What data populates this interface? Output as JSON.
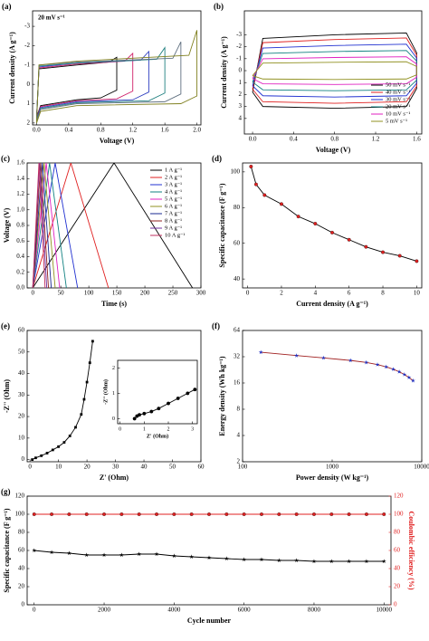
{
  "chart_data": [
    {
      "type": "line",
      "panel": "(a)",
      "annotation": "20 mV s⁻¹",
      "x_label": "Voltage (V)",
      "y_label": "Current density (A g⁻¹)",
      "xlim": [
        -0.05,
        2.05
      ],
      "ylim": [
        2.1,
        -3.8
      ],
      "xticks": [
        {
          "value": 0,
          "label": "0.0"
        },
        {
          "value": 0.4,
          "label": "0.4"
        },
        {
          "value": 0.8,
          "label": "0.8"
        },
        {
          "value": 1.2,
          "label": "1.2"
        },
        {
          "value": 1.6,
          "label": "1.6"
        },
        {
          "value": 2.0,
          "label": "2.0"
        }
      ],
      "yticks": [
        -3,
        -2,
        -1,
        0,
        1,
        2
      ],
      "series": [
        {
          "color": "#000000",
          "x": [
            0,
            0.03,
            0.5,
            0.9,
            1.0,
            1.0,
            0.8,
            0.5,
            0.05,
            0
          ],
          "values": [
            1.7,
            -0.8,
            -1.0,
            -1.15,
            -1.4,
            0.3,
            0.7,
            0.8,
            1.1,
            1.7
          ]
        },
        {
          "color": "#d0206a",
          "x": [
            0,
            0.03,
            0.5,
            1.1,
            1.2,
            1.2,
            1.0,
            0.5,
            0.05,
            0
          ],
          "values": [
            1.75,
            -0.85,
            -1.05,
            -1.2,
            -1.6,
            0.35,
            0.75,
            0.85,
            1.15,
            1.75
          ]
        },
        {
          "color": "#3040c0",
          "x": [
            0,
            0.03,
            0.5,
            1.3,
            1.4,
            1.4,
            1.2,
            0.5,
            0.05,
            0
          ],
          "values": [
            1.8,
            -0.9,
            -1.1,
            -1.25,
            -1.7,
            0.4,
            0.8,
            0.9,
            1.2,
            1.8
          ]
        },
        {
          "color": "#208080",
          "x": [
            0,
            0.03,
            0.5,
            1.5,
            1.6,
            1.6,
            1.4,
            0.5,
            0.05,
            0
          ],
          "values": [
            1.85,
            -0.95,
            -1.1,
            -1.3,
            -1.9,
            0.45,
            0.85,
            0.95,
            1.25,
            1.85
          ]
        },
        {
          "color": "#607080",
          "x": [
            0,
            0.03,
            0.5,
            1.7,
            1.8,
            1.8,
            1.6,
            0.5,
            0.05,
            0
          ],
          "values": [
            1.9,
            -1.0,
            -1.15,
            -1.35,
            -2.2,
            0.5,
            0.9,
            1.0,
            1.3,
            1.9
          ]
        },
        {
          "color": "#808020",
          "x": [
            0,
            0.03,
            0.5,
            1.9,
            2.0,
            2.0,
            1.8,
            0.5,
            0.05,
            0
          ],
          "values": [
            2.0,
            -1.0,
            -1.2,
            -1.5,
            -2.8,
            0.6,
            1.0,
            1.1,
            1.4,
            2.0
          ]
        }
      ]
    },
    {
      "type": "line",
      "panel": "(b)",
      "legend": "lower right",
      "x_label": "Voltage (V)",
      "y_label": "Current density (A g⁻¹)",
      "xlim": [
        -0.08,
        1.65
      ],
      "ylim": [
        5.3,
        -5.0
      ],
      "xticks": [
        {
          "value": 0,
          "label": "0.0"
        },
        {
          "value": 0.4,
          "label": "0.4"
        },
        {
          "value": 0.8,
          "label": "0.8"
        },
        {
          "value": 1.2,
          "label": "1.2"
        },
        {
          "value": 1.6,
          "label": "1.6"
        }
      ],
      "yticks": [
        -3,
        -2,
        -1,
        0,
        1,
        2,
        3,
        4
      ],
      "x": [
        0,
        0.1,
        0.8,
        1.5,
        1.6,
        1.6,
        1.5,
        0.8,
        0.1,
        0
      ],
      "series": [
        {
          "name": "50 mV s⁻¹",
          "color": "#000000",
          "values": [
            1.8,
            -2.7,
            -3.0,
            -3.15,
            -1.5,
            1.5,
            3.0,
            3.15,
            3.0,
            1.8
          ]
        },
        {
          "name": "40 mV s⁻¹",
          "color": "#e02020",
          "values": [
            1.56,
            -2.34,
            -2.6,
            -2.73,
            -1.3,
            1.3,
            2.6,
            2.73,
            2.6,
            1.56
          ]
        },
        {
          "name": "30 mV s⁻¹",
          "color": "#2030d0",
          "values": [
            1.26,
            -1.89,
            -2.1,
            -2.21,
            -1.05,
            1.05,
            2.1,
            2.21,
            2.1,
            1.26
          ]
        },
        {
          "name": "20 mV s⁻¹",
          "color": "#108080",
          "values": [
            0.96,
            -1.44,
            -1.6,
            -1.68,
            -0.8,
            0.8,
            1.6,
            1.68,
            1.6,
            0.96
          ]
        },
        {
          "name": "10 mV s⁻¹",
          "color": "#e020c0",
          "values": [
            0.66,
            -0.99,
            -1.1,
            -1.16,
            -0.55,
            0.55,
            1.1,
            1.16,
            1.1,
            0.66
          ]
        },
        {
          "name": "5 mV s⁻¹",
          "color": "#909020",
          "values": [
            0.42,
            -0.63,
            -0.7,
            -0.74,
            -0.35,
            0.35,
            0.7,
            0.74,
            0.7,
            0.42
          ]
        }
      ]
    },
    {
      "type": "line",
      "panel": "(c)",
      "legend": "upper right",
      "x_label": "Time (s)",
      "y_label": "Voltage (V)",
      "xlim": [
        -10,
        300
      ],
      "ylim": [
        0,
        1.6
      ],
      "xticks": [
        0,
        50,
        100,
        150,
        200,
        250,
        300
      ],
      "yticks": [
        {
          "value": 0,
          "label": "0.0"
        },
        {
          "value": 0.2,
          "label": "0.2"
        },
        {
          "value": 0.4,
          "label": "0.4"
        },
        {
          "value": 0.6,
          "label": "0.6"
        },
        {
          "value": 0.8,
          "label": "0.8"
        },
        {
          "value": 1.0,
          "label": "1.0"
        },
        {
          "value": 1.2,
          "label": "1.2"
        },
        {
          "value": 1.4,
          "label": "1.4"
        },
        {
          "value": 1.6,
          "label": "1.6"
        }
      ],
      "series": [
        {
          "name": "1 A g⁻¹",
          "color": "#000000",
          "x": [
            0,
            145,
            285
          ],
          "values": [
            0,
            1.6,
            0
          ]
        },
        {
          "name": "2 A g⁻¹",
          "color": "#e02020",
          "x": [
            0,
            68,
            135
          ],
          "values": [
            0,
            1.6,
            0
          ]
        },
        {
          "name": "3 A g⁻¹",
          "color": "#2030d0",
          "x": [
            0,
            40,
            80
          ],
          "values": [
            0,
            1.6,
            0
          ]
        },
        {
          "name": "4 A g⁻¹",
          "color": "#108080",
          "x": [
            0,
            30,
            60
          ],
          "values": [
            0,
            1.6,
            0
          ]
        },
        {
          "name": "5 A g⁻¹",
          "color": "#e020c0",
          "x": [
            0,
            24,
            48
          ],
          "values": [
            0,
            1.6,
            0
          ]
        },
        {
          "name": "6 A g⁻¹",
          "color": "#909020",
          "x": [
            0,
            20,
            40
          ],
          "values": [
            0,
            1.6,
            0
          ]
        },
        {
          "name": "7 A g⁻¹",
          "color": "#1a2a90",
          "x": [
            0,
            17,
            33
          ],
          "values": [
            0,
            1.6,
            0
          ]
        },
        {
          "name": "8 A g⁻¹",
          "color": "#902020",
          "x": [
            0,
            14,
            28
          ],
          "values": [
            0,
            1.6,
            0
          ]
        },
        {
          "name": "9 A g⁻¹",
          "color": "#7030a0",
          "x": [
            0,
            12,
            25
          ],
          "values": [
            0,
            1.6,
            0
          ]
        },
        {
          "name": "10 A g⁻¹",
          "color": "#c03060",
          "x": [
            0,
            11,
            22
          ],
          "values": [
            0,
            1.6,
            0
          ]
        }
      ]
    },
    {
      "type": "line",
      "panel": "(d)",
      "marker": "circle",
      "x_label": "Current density (A g⁻¹)",
      "y_label": "Specific capacitance (F g⁻¹)",
      "xlim": [
        -0.3,
        10.3
      ],
      "ylim": [
        35,
        105
      ],
      "xticks": [
        0,
        2,
        4,
        6,
        8,
        10
      ],
      "yticks": [
        40,
        60,
        80,
        100
      ],
      "series": [
        {
          "color": "#000000",
          "marker_color": "#e02020",
          "x": [
            0.2,
            0.5,
            1,
            2,
            3,
            4,
            5,
            6,
            7,
            8,
            9,
            10
          ],
          "values": [
            103,
            93,
            87,
            82,
            75,
            71,
            66,
            62,
            58,
            55,
            53,
            50
          ]
        }
      ]
    },
    {
      "type": "line",
      "panel": "(e)",
      "marker": "square",
      "x_label": "Z' (Ohm)",
      "y_label": "-Z'' (Ohm)",
      "xlim": [
        -1,
        60
      ],
      "ylim": [
        -1,
        60
      ],
      "xticks": [
        0,
        10,
        20,
        30,
        40,
        50,
        60
      ],
      "yticks": [
        0,
        10,
        20,
        30,
        40,
        50,
        60
      ],
      "series": [
        {
          "color": "#000000",
          "marker_color": "#000000",
          "x": [
            0.8,
            2,
            4,
            6,
            8,
            10,
            12,
            14,
            16,
            18,
            19,
            20,
            21,
            22
          ],
          "values": [
            0,
            0.8,
            1.8,
            3,
            4.5,
            6,
            8,
            11,
            15,
            21,
            28,
            36,
            45,
            55
          ]
        }
      ]
    },
    {
      "type": "line",
      "inset": true,
      "marker": "circle",
      "x_label": "Z' (Ohm)",
      "y_label": "-Z'' (Ohm)",
      "xlim": [
        -0.1,
        3.2
      ],
      "ylim": [
        -0.2,
        2.3
      ],
      "xticks": [
        0,
        1,
        2,
        3
      ],
      "yticks": [
        0,
        1,
        2
      ],
      "series": [
        {
          "color": "#000000",
          "marker_color": "#000000",
          "x": [
            0.6,
            0.7,
            0.8,
            1.0,
            1.3,
            1.6,
            2.0,
            2.4,
            2.8,
            3.1
          ],
          "values": [
            0,
            0.1,
            0.15,
            0.2,
            0.28,
            0.4,
            0.6,
            0.8,
            1.0,
            1.15
          ]
        }
      ]
    },
    {
      "type": "line",
      "panel": "(f)",
      "marker": "star",
      "xscale": "log",
      "yscale": "log",
      "x_label": "Power density (W kg⁻¹)",
      "y_label": "Energy density (Wh kg⁻¹)",
      "xlim": [
        100,
        10000
      ],
      "ylim": [
        2,
        64
      ],
      "xticks": [
        100,
        1000,
        10000
      ],
      "yticks": [
        2,
        4,
        8,
        16,
        32,
        64
      ],
      "series": [
        {
          "color": "#a02020",
          "marker_color": "#2030c0",
          "x": [
            160,
            400,
            800,
            1600,
            2400,
            3200,
            4000,
            4800,
            5600,
            6400,
            7200,
            8000
          ],
          "values": [
            36,
            33,
            31,
            29,
            27.5,
            26,
            24.5,
            23,
            21.5,
            20,
            18.5,
            17
          ]
        }
      ]
    },
    {
      "type": "line",
      "panel": "(g)",
      "x_label": "Cycle number",
      "y_label": "Specific capacitance (F g⁻¹)",
      "y2_label": "Coulombic efficiency (%)",
      "xlim": [
        -200,
        10200
      ],
      "ylim": [
        0,
        120
      ],
      "y2lim": [
        0,
        120
      ],
      "xticks": [
        0,
        2000,
        4000,
        6000,
        8000,
        10000
      ],
      "yticks": [
        0,
        20,
        40,
        60,
        80,
        100,
        120
      ],
      "y2ticks": [
        0,
        20,
        40,
        60,
        80,
        100,
        120
      ],
      "x": [
        0,
        500,
        1000,
        1500,
        2000,
        2500,
        3000,
        3500,
        4000,
        4500,
        5000,
        5500,
        6000,
        6500,
        7000,
        7500,
        8000,
        8500,
        9000,
        9500,
        10000
      ],
      "series": [
        {
          "color": "#000000",
          "marker": "star",
          "marker_color": "#000000",
          "values": [
            60,
            58,
            57,
            55,
            55,
            55,
            56,
            56,
            54,
            53,
            52,
            51,
            50,
            50,
            49,
            49,
            48,
            48,
            48,
            48,
            48
          ]
        },
        {
          "color": "#e02020",
          "marker": "circle",
          "marker_color": "#e02020",
          "axis": "y2",
          "values": [
            100,
            100,
            100,
            100,
            100,
            100,
            100,
            100,
            100,
            100,
            100,
            100,
            100,
            100,
            100,
            100,
            100,
            100,
            100,
            100,
            100
          ]
        }
      ]
    }
  ]
}
